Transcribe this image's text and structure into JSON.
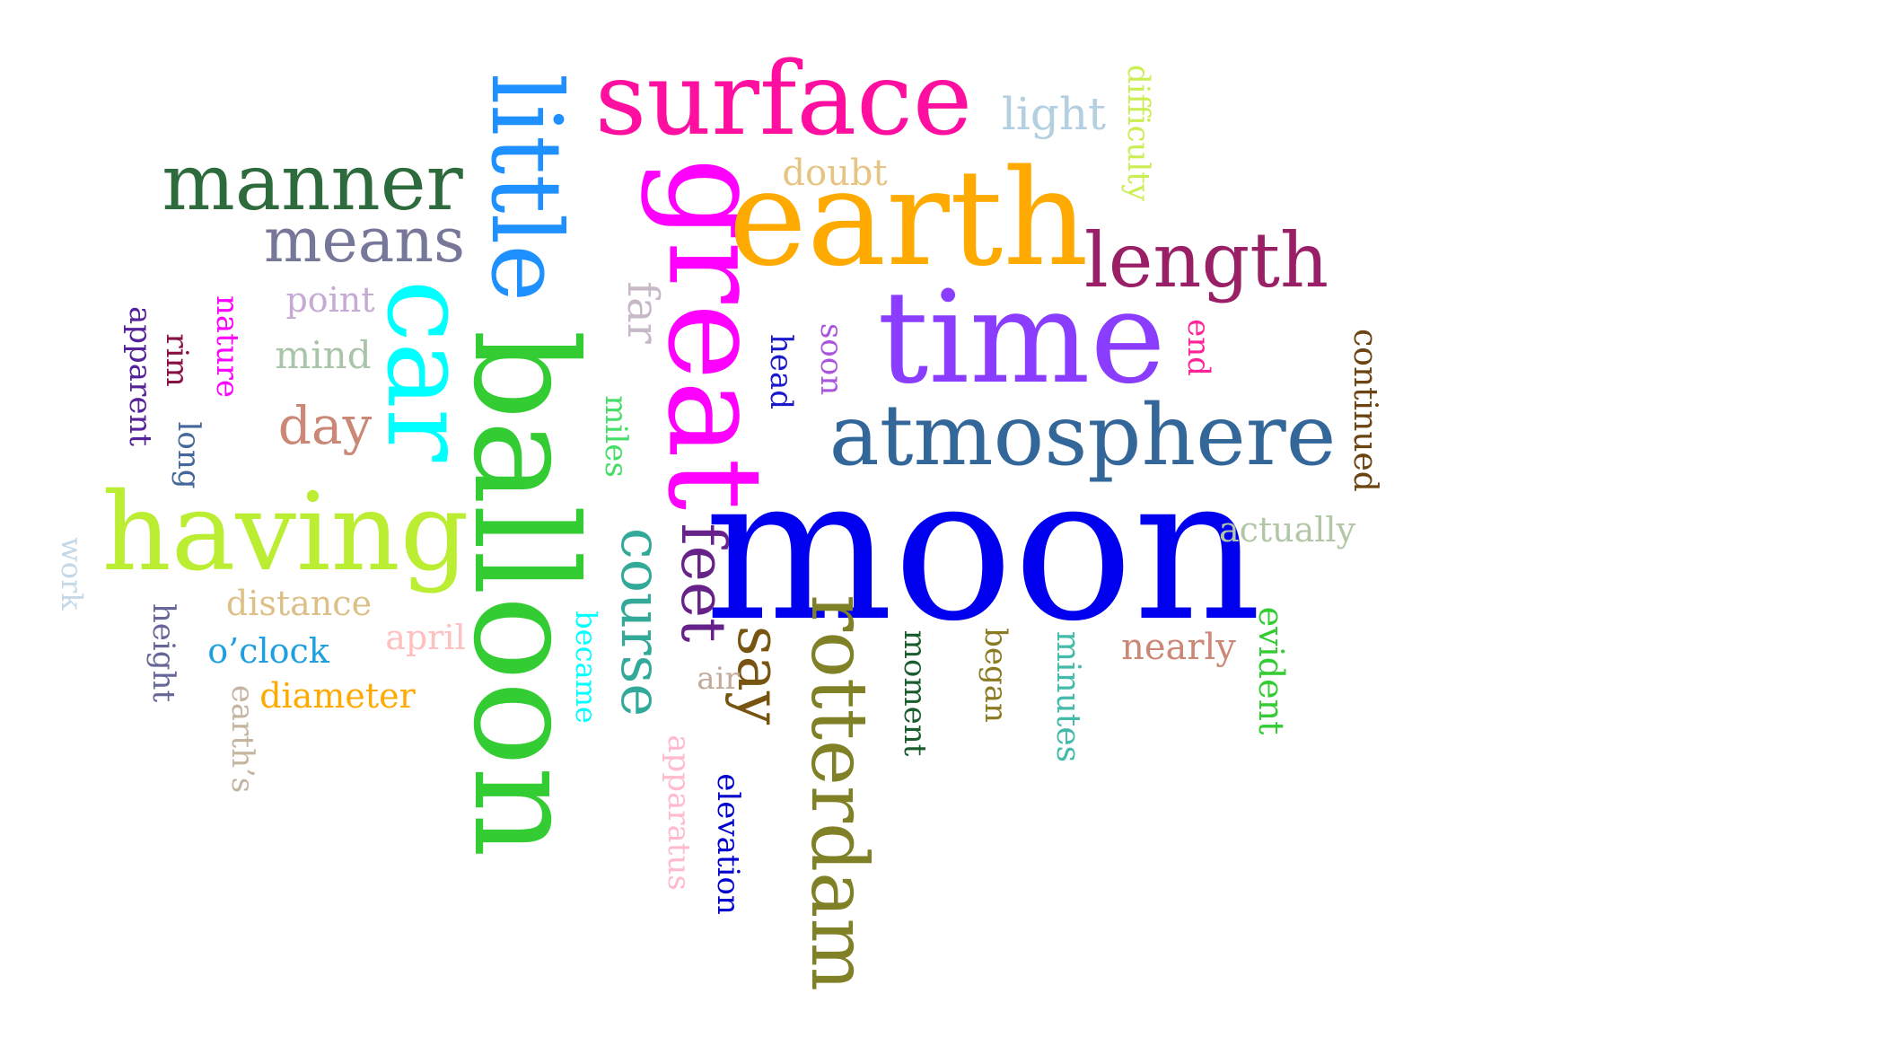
{
  "words": {
    "moon": {
      "text": "moon",
      "color": "#0000ee"
    },
    "balloon": {
      "text": "balloon",
      "color": "#33cc33"
    },
    "great": {
      "text": "great",
      "color": "#ff00ff"
    },
    "earth": {
      "text": "earth",
      "color": "#ffaa00"
    },
    "time": {
      "text": "time",
      "color": "#8a3cff"
    },
    "having": {
      "text": "having",
      "color": "#bbee33"
    },
    "little": {
      "text": "little",
      "color": "#1e90ff"
    },
    "car": {
      "text": "car",
      "color": "#00ffff"
    },
    "surface": {
      "text": "surface",
      "color": "#ff0fa0"
    },
    "atmosphere": {
      "text": "atmosphere",
      "color": "#336699"
    },
    "rotterdam": {
      "text": "rotterdam",
      "color": "#808026"
    },
    "manner": {
      "text": "manner",
      "color": "#2e6b3c"
    },
    "length": {
      "text": "length",
      "color": "#991f66"
    },
    "feet": {
      "text": "feet",
      "color": "#662288"
    },
    "course": {
      "text": "course",
      "color": "#33aa99"
    },
    "say": {
      "text": "say",
      "color": "#775511"
    },
    "means": {
      "text": "means",
      "color": "#777799"
    },
    "day": {
      "text": "day",
      "color": "#cc8877"
    },
    "light": {
      "text": "light",
      "color": "#b3cfe0"
    },
    "far": {
      "text": "far",
      "color": "#c7b8c7"
    },
    "nearly": {
      "text": "nearly",
      "color": "#cc8877"
    },
    "mind": {
      "text": "mind",
      "color": "#aac4aa"
    },
    "distance": {
      "text": "distance",
      "color": "#ddc088"
    },
    "actually": {
      "text": "actually",
      "color": "#b3c7a8"
    },
    "continued": {
      "text": "continued",
      "color": "#6b4411"
    },
    "evident": {
      "text": "evident",
      "color": "#33cc33"
    },
    "point": {
      "text": "point",
      "color": "#c4aad4"
    },
    "doubt": {
      "text": "doubt",
      "color": "#e6c484"
    },
    "apparatus": {
      "text": "apparatus",
      "color": "#ffbbcc"
    },
    "elevation": {
      "text": "elevation",
      "color": "#0000cc"
    },
    "moment": {
      "text": "moment",
      "color": "#1a5c2e"
    },
    "minutes": {
      "text": "minutes",
      "color": "#44bbaa"
    },
    "began": {
      "text": "began",
      "color": "#8a7a22"
    },
    "diameter": {
      "text": "diameter",
      "color": "#ffaa00"
    },
    "oclock": {
      "text": "o’clock",
      "color": "#1ea0e0"
    },
    "april": {
      "text": "april",
      "color": "#ffc0c0"
    },
    "became": {
      "text": "became",
      "color": "#00ffff"
    },
    "miles": {
      "text": "miles",
      "color": "#44dd66"
    },
    "air": {
      "text": "air",
      "color": "#c4aa99"
    },
    "head": {
      "text": "head",
      "color": "#1a1acc"
    },
    "soon": {
      "text": "soon",
      "color": "#aa55dd"
    },
    "end": {
      "text": "end",
      "color": "#ff2299"
    },
    "difficulty": {
      "text": "difficulty",
      "color": "#ccee55"
    },
    "nature": {
      "text": "nature",
      "color": "#ff00ff"
    },
    "rim": {
      "text": "rim",
      "color": "#881144"
    },
    "long": {
      "text": "long",
      "color": "#446699"
    },
    "apparent": {
      "text": "apparent",
      "color": "#552299"
    },
    "height": {
      "text": "height",
      "color": "#666699"
    },
    "earths": {
      "text": "earth’s",
      "color": "#c4b4a0"
    },
    "work": {
      "text": "work",
      "color": "#c4d8e8"
    }
  }
}
